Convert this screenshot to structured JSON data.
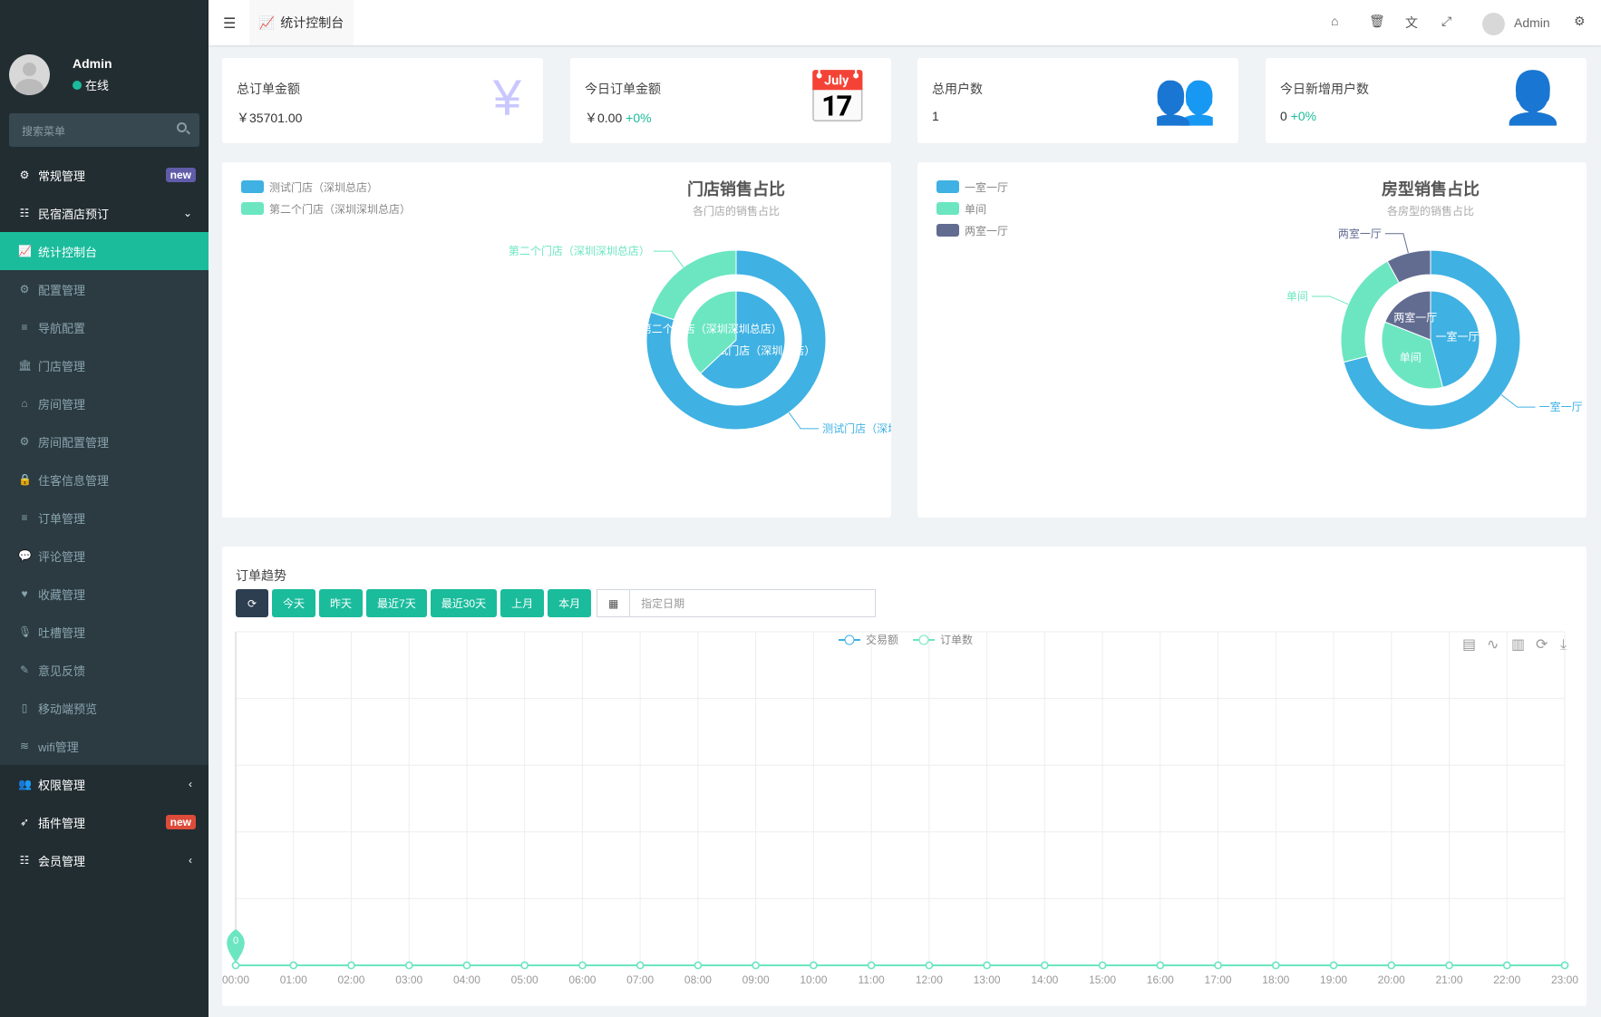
{
  "sidebar": {
    "user": {
      "name": "Admin",
      "status": "在线"
    },
    "search_placeholder": "搜索菜单",
    "items": [
      {
        "label": "常规管理",
        "icon": "gears-icon",
        "badge": "new",
        "badge_color": "#605ca8",
        "type": "top"
      },
      {
        "label": "民宿酒店预订",
        "icon": "list-icon",
        "chevron": "⌄",
        "type": "top"
      },
      {
        "label": "统计控制台",
        "icon": "line-chart-icon",
        "type": "active"
      },
      {
        "label": "配置管理",
        "icon": "gear-icon",
        "type": "sub"
      },
      {
        "label": "导航配置",
        "icon": "bars-icon",
        "type": "sub"
      },
      {
        "label": "门店管理",
        "icon": "bank-icon",
        "type": "sub"
      },
      {
        "label": "房间管理",
        "icon": "home-icon",
        "type": "sub"
      },
      {
        "label": "房间配置管理",
        "icon": "gear-icon",
        "type": "sub"
      },
      {
        "label": "住客信息管理",
        "icon": "lock-icon",
        "type": "sub"
      },
      {
        "label": "订单管理",
        "icon": "bars-icon",
        "type": "sub"
      },
      {
        "label": "评论管理",
        "icon": "comments-icon",
        "type": "sub"
      },
      {
        "label": "收藏管理",
        "icon": "heart-icon",
        "type": "sub"
      },
      {
        "label": "吐槽管理",
        "icon": "microphone-icon",
        "type": "sub"
      },
      {
        "label": "意见反馈",
        "icon": "pencil-icon",
        "type": "sub"
      },
      {
        "label": "移动端预览",
        "icon": "mobile-icon",
        "type": "sub"
      },
      {
        "label": "wifi管理",
        "icon": "wifi-icon",
        "type": "sub"
      },
      {
        "label": "权限管理",
        "icon": "users-icon",
        "chevron": "‹",
        "type": "top"
      },
      {
        "label": "插件管理",
        "icon": "rocket-icon",
        "badge": "new",
        "badge_color": "#dd4b39",
        "type": "top"
      },
      {
        "label": "会员管理",
        "icon": "list-icon",
        "chevron": "‹",
        "type": "top"
      }
    ]
  },
  "topbar": {
    "tab_label": "统计控制台",
    "user": "Admin",
    "icons": [
      "home-icon",
      "trash-icon",
      "translate-icon",
      "fullscreen-icon",
      "gears-icon"
    ]
  },
  "stats": [
    {
      "title": "总订单金额",
      "value": "￥35701.00",
      "change": "",
      "icon": "yen-icon",
      "color": "#c9c7ff"
    },
    {
      "title": "今日订单金额",
      "value": "￥0.00",
      "change": "+0%",
      "icon": "calendar-icon",
      "color": "#fbc3c3"
    },
    {
      "title": "总用户数",
      "value": "1",
      "change": "",
      "icon": "users-icon",
      "color": "#c5dcf7"
    },
    {
      "title": "今日新增用户数",
      "value": "0",
      "change": "+0%",
      "icon": "user-icon",
      "color": "#ffe5c4"
    }
  ],
  "chart_data": [
    {
      "type": "pie",
      "title": "门店销售占比",
      "subtitle": "各门店的销售占比",
      "legend": "top-left",
      "categories": [
        "测试门店（深圳总店）",
        "第二个门店（深圳深圳总店）"
      ],
      "colors": [
        "#3fb1e3",
        "#6be6c1"
      ],
      "outer_values": [
        80,
        20
      ],
      "inner_values": [
        63,
        37
      ]
    },
    {
      "type": "pie",
      "title": "房型销售占比",
      "subtitle": "各房型的销售占比",
      "legend": "top-left",
      "categories": [
        "一室一厅",
        "单间",
        "两室一厅"
      ],
      "colors": [
        "#3fb1e3",
        "#6be6c1",
        "#626c91"
      ],
      "outer_values": [
        71,
        21,
        8
      ],
      "inner_values": [
        46,
        35,
        19
      ]
    },
    {
      "type": "line",
      "title": "订单趋势",
      "legend": "top-center",
      "x": [
        "00:00",
        "01:00",
        "02:00",
        "03:00",
        "04:00",
        "05:00",
        "06:00",
        "07:00",
        "08:00",
        "09:00",
        "10:00",
        "11:00",
        "12:00",
        "13:00",
        "14:00",
        "15:00",
        "16:00",
        "17:00",
        "18:00",
        "19:00",
        "20:00",
        "21:00",
        "22:00",
        "23:00"
      ],
      "series": [
        {
          "name": "交易额",
          "color": "#3fb1e3",
          "values": [
            0,
            0,
            0,
            0,
            0,
            0,
            0,
            0,
            0,
            0,
            0,
            0,
            0,
            0,
            0,
            0,
            0,
            0,
            0,
            0,
            0,
            0,
            0,
            0
          ]
        },
        {
          "name": "订单数",
          "color": "#6be6c1",
          "values": [
            0,
            0,
            0,
            0,
            0,
            0,
            0,
            0,
            0,
            0,
            0,
            0,
            0,
            0,
            0,
            0,
            0,
            0,
            0,
            0,
            0,
            0,
            0,
            0
          ]
        }
      ],
      "mark_point": "0",
      "grid": true,
      "toolbox": [
        "data-view-icon",
        "line-icon",
        "bar-icon",
        "restore-icon",
        "download-icon"
      ]
    }
  ],
  "trend": {
    "title": "订单趋势",
    "buttons": [
      "今天",
      "昨天",
      "最近7天",
      "最近30天",
      "上月",
      "本月"
    ],
    "date_placeholder": "指定日期"
  }
}
